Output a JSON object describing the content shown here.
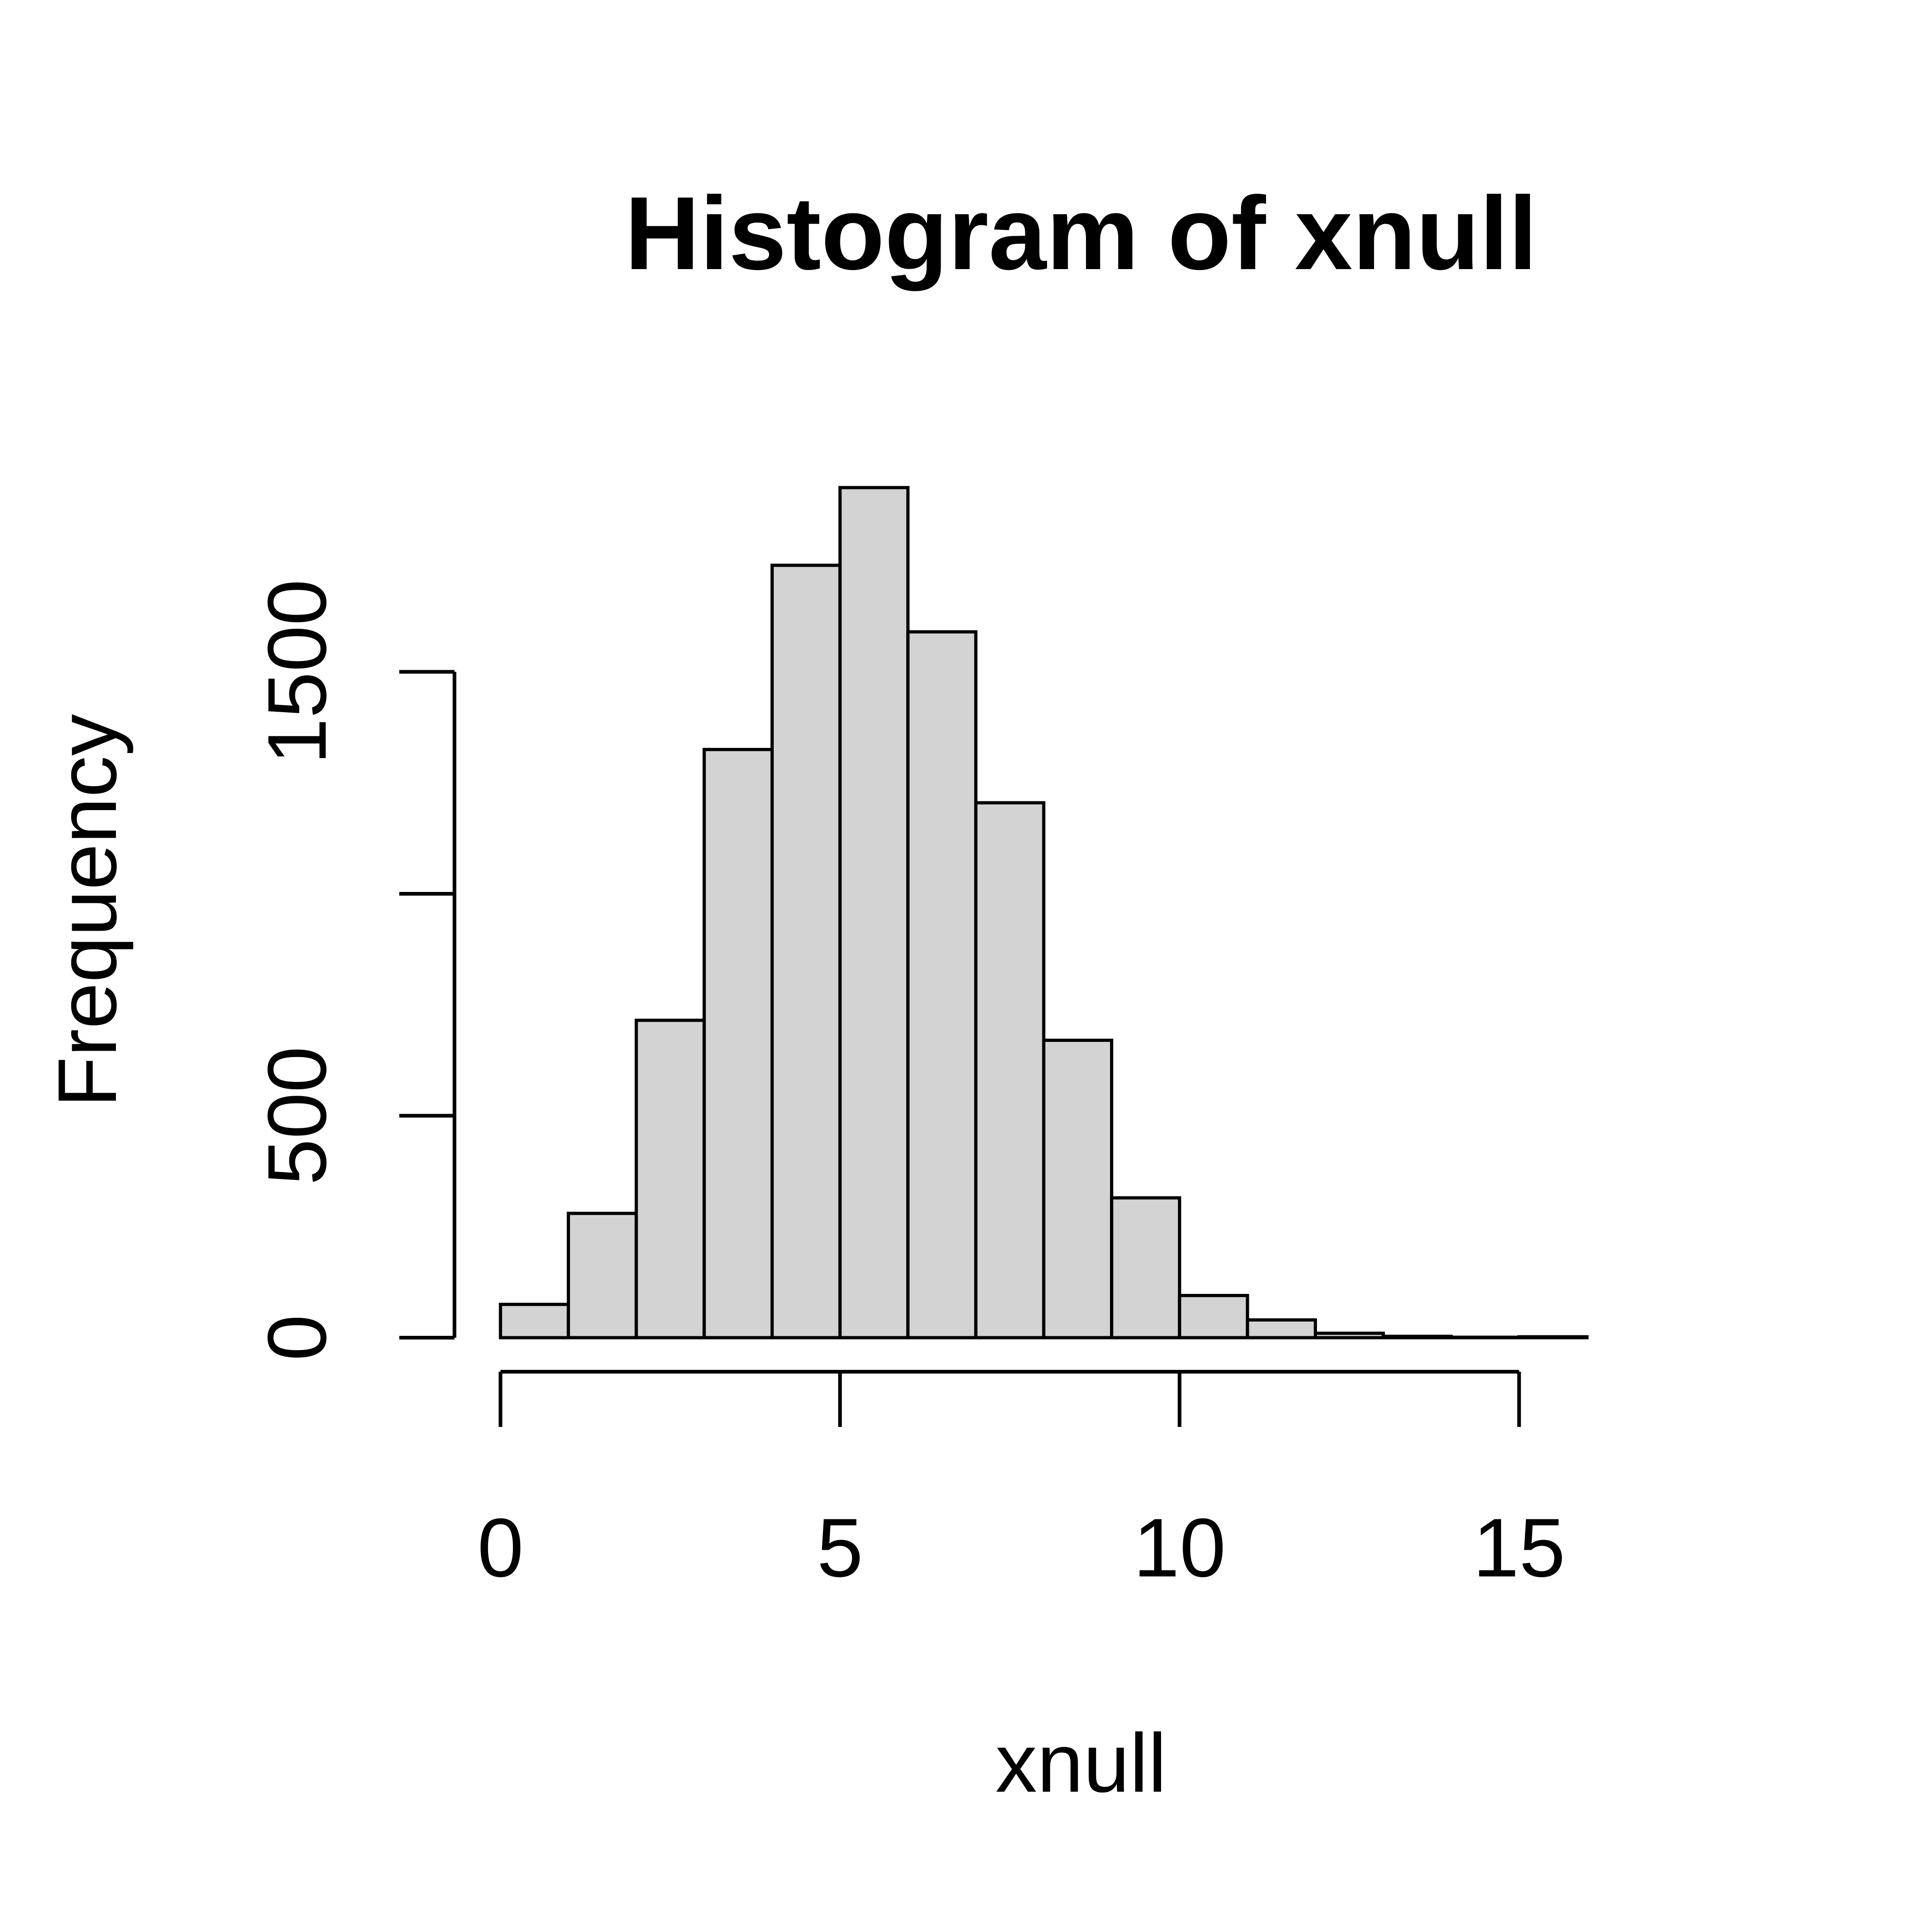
{
  "chart_data": {
    "type": "bar",
    "title": "Histogram of xnull",
    "xlabel": "xnull",
    "ylabel": "Frequency",
    "bin_edges": [
      0,
      1,
      2,
      3,
      4,
      5,
      6,
      7,
      8,
      9,
      10,
      11,
      12,
      13,
      14,
      15,
      16
    ],
    "values": [
      75,
      280,
      715,
      1325,
      1740,
      1915,
      1590,
      1205,
      670,
      315,
      95,
      40,
      10,
      3,
      1,
      2
    ],
    "xlim": [
      0,
      16
    ],
    "ylim": [
      0,
      1915
    ],
    "x_ticks": [
      0,
      5,
      10,
      15
    ],
    "x_tick_labels": [
      "0",
      "5",
      "10",
      "15"
    ],
    "y_ticks": [
      0,
      500,
      1000,
      1500
    ],
    "y_tick_labels": [
      "0",
      "500",
      "",
      "1500"
    ],
    "grid": false,
    "legend": "none",
    "colors": {
      "bar_fill": "#d3d3d3",
      "bar_stroke": "#000000"
    }
  }
}
